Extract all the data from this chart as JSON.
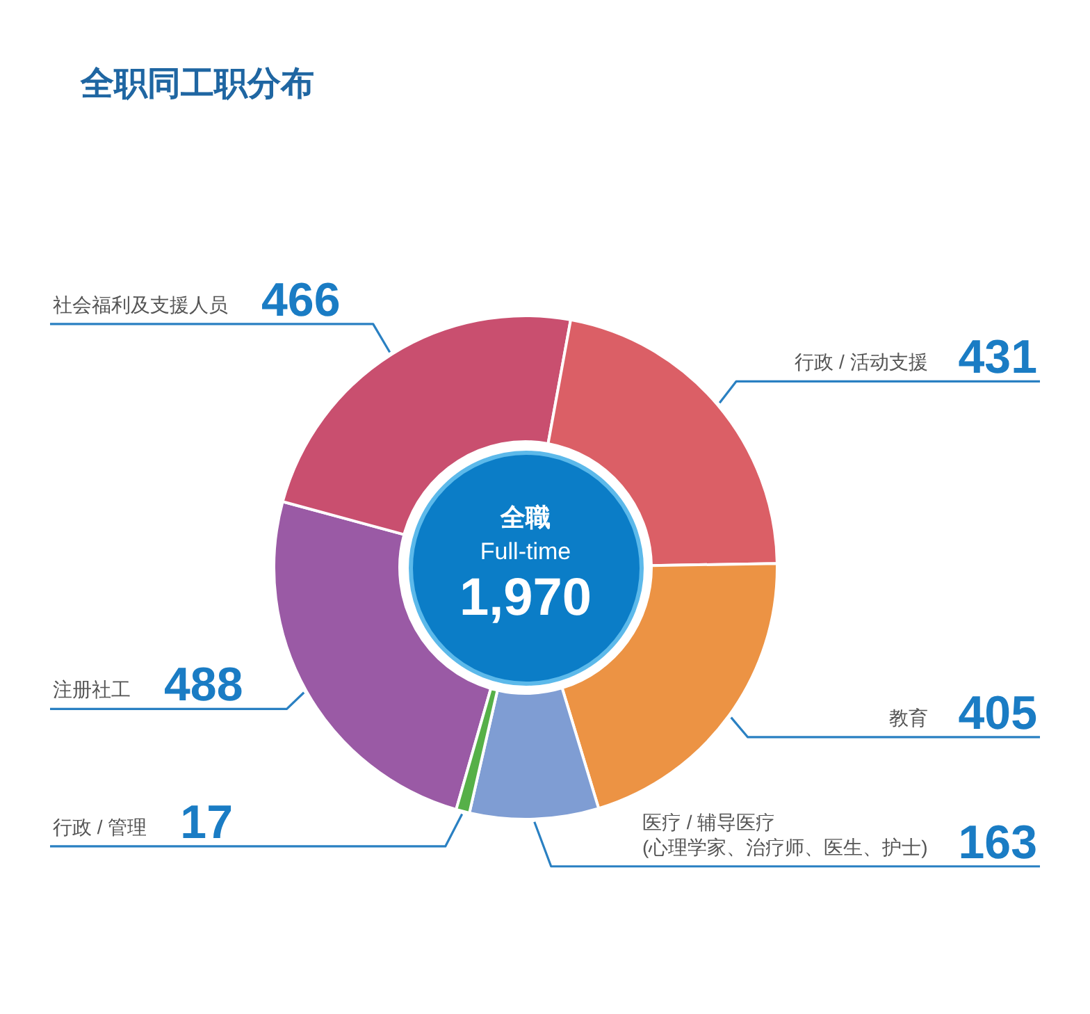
{
  "chart_data": {
    "type": "donut",
    "title": "全职同工职分布",
    "categories": [
      "注册社工",
      "社会福利及支援人员",
      "行政 / 活动支援",
      "教育",
      "医疗 / 辅导医疗\n(心理学家、治疗师、医生、护士)",
      "行政 / 管理"
    ],
    "values": [
      488,
      466,
      431,
      405,
      163,
      17
    ],
    "colors": [
      "#9a5aa5",
      "#c94f6f",
      "#db5f66",
      "#ec9344",
      "#7f9dd3",
      "#56b048"
    ],
    "data_labels": true,
    "legend": false,
    "annotations": [
      "全職",
      "Full-time",
      "1,970"
    ]
  }
}
